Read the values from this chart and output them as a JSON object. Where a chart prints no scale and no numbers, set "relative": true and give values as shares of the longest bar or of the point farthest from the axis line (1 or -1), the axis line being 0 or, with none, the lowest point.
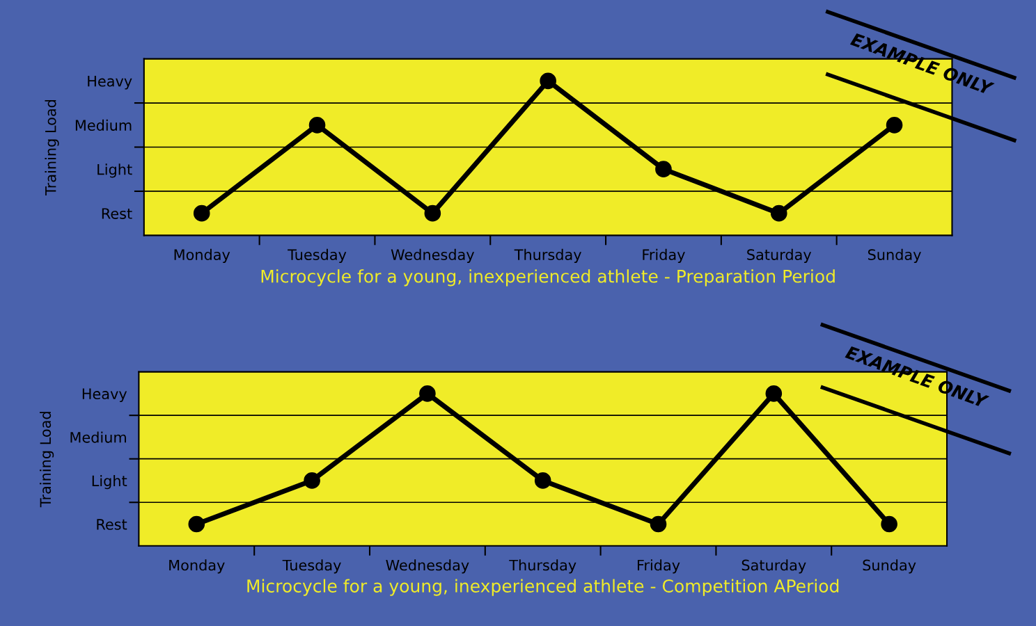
{
  "chart_data": [
    {
      "type": "line",
      "title": "Microcycle for a young, inexperienced athlete - Preparation Period",
      "ylabel": "Training Load",
      "categories": [
        "Monday",
        "Tuesday",
        "Wednesday",
        "Thursday",
        "Friday",
        "Saturday",
        "Sunday"
      ],
      "y_categories": [
        "Heavy",
        "Medium",
        "Light",
        "Rest"
      ],
      "series": [
        {
          "color": "#000000",
          "values": [
            0.143,
            0.714,
            0.143,
            1,
            0.429,
            0.143,
            0.714
          ]
        }
      ],
      "relative": true,
      "legend": false,
      "grid": "y",
      "marker": "circle",
      "line_style": "solid",
      "annotations": [
        "EXAMPLE ONLY"
      ]
    },
    {
      "type": "line",
      "title": "Microcycle for a young, inexperienced athlete - Competition APeriod",
      "ylabel": "Training Load",
      "categories": [
        "Monday",
        "Tuesday",
        "Wednesday",
        "Thursday",
        "Friday",
        "Saturday",
        "Sunday"
      ],
      "y_categories": [
        "Heavy",
        "Medium",
        "Light",
        "Rest"
      ],
      "series": [
        {
          "color": "#000000",
          "values": [
            0.143,
            0.429,
            1,
            0.429,
            0.143,
            1,
            0.143
          ]
        }
      ],
      "relative": true,
      "legend": false,
      "grid": "y",
      "marker": "circle",
      "line_style": "solid",
      "annotations": [
        "EXAMPLE ONLY"
      ]
    }
  ]
}
